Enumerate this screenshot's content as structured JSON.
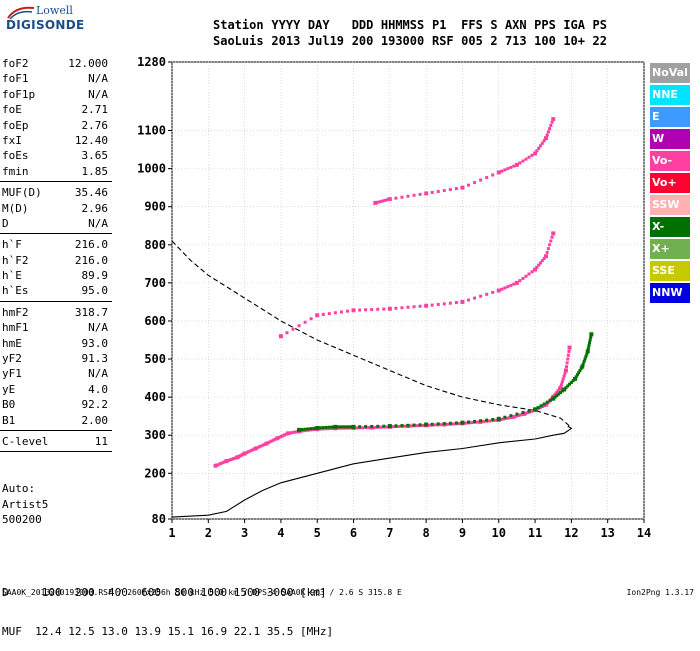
{
  "logo": {
    "line1": "Lowell",
    "line2": "DIGISONDE"
  },
  "header": {
    "row1": [
      "Station",
      "YYYY",
      "DAY",
      "DDD",
      "HHMMSS",
      "P1",
      "FFS",
      "S",
      "AXN",
      "PPS",
      "IGA",
      "PS"
    ],
    "row2": [
      "SaoLuis",
      "2013",
      "Jul19",
      "200",
      "193000",
      "RSF",
      "005",
      "2",
      "713",
      "100",
      "10+",
      "22"
    ]
  },
  "params": {
    "group1": [
      {
        "k": "foF2",
        "v": "12.000"
      },
      {
        "k": "foF1",
        "v": "N/A"
      },
      {
        "k": "foF1p",
        "v": "N/A"
      },
      {
        "k": "foE",
        "v": "2.71"
      },
      {
        "k": "foEp",
        "v": "2.76"
      },
      {
        "k": "fxI",
        "v": "12.40"
      },
      {
        "k": "foEs",
        "v": "3.65"
      },
      {
        "k": "fmin",
        "v": "1.85"
      }
    ],
    "group2": [
      {
        "k": "MUF(D)",
        "v": "35.46"
      },
      {
        "k": "M(D)",
        "v": "2.96"
      },
      {
        "k": "D",
        "v": "N/A"
      }
    ],
    "group3": [
      {
        "k": "h`F",
        "v": "216.0"
      },
      {
        "k": "h`F2",
        "v": "216.0"
      },
      {
        "k": "h`E",
        "v": "89.9"
      },
      {
        "k": "h`Es",
        "v": "95.0"
      }
    ],
    "group4": [
      {
        "k": "hmF2",
        "v": "318.7"
      },
      {
        "k": "hmF1",
        "v": "N/A"
      },
      {
        "k": "hmE",
        "v": "93.0"
      },
      {
        "k": "yF2",
        "v": "91.3"
      },
      {
        "k": "yF1",
        "v": "N/A"
      },
      {
        "k": "yE",
        "v": "4.0"
      },
      {
        "k": "B0",
        "v": "92.2"
      },
      {
        "k": "B1",
        "v": "2.00"
      }
    ],
    "group5": [
      {
        "k": "C-level",
        "v": "11"
      }
    ]
  },
  "auto": {
    "line1": "Auto:",
    "line2": "Artist5",
    "line3": "500200"
  },
  "legend": [
    {
      "label": "NoVal",
      "color": "#a0a0a0"
    },
    {
      "label": "NNE",
      "color": "#00e5ff"
    },
    {
      "label": "E",
      "color": "#3d9bff"
    },
    {
      "label": "W",
      "color": "#b000b0"
    },
    {
      "label": "Vo-",
      "color": "#ff40a0"
    },
    {
      "label": "Vo+",
      "color": "#ff0030"
    },
    {
      "label": "SSW",
      "color": "#ffb0b0"
    },
    {
      "label": "X-",
      "color": "#007000"
    },
    {
      "label": "X+",
      "color": "#70b050"
    },
    {
      "label": "SSE",
      "color": "#c8c800"
    },
    {
      "label": "NNW",
      "color": "#0000e0"
    }
  ],
  "bottom": {
    "d_row": "D     100  200  400  600  800 1000 1500 3000 [km]",
    "muf_row": "MUF  12.4 12.5 13.0 13.9 15.1 16.9 22.1 35.5 [MHz]"
  },
  "footer": {
    "text": "SAA0K_2013200193000.RSF / 260fx256h 50 kHz 5.0 km / DPS-4 SAA0K 903 / 2.6 S 315.8 E",
    "version": "Ion2Png 1.3.17"
  },
  "chart_data": {
    "type": "scatter",
    "x_ticks": [
      1,
      2,
      3,
      4,
      5,
      6,
      7,
      8,
      9,
      10,
      11,
      12,
      13,
      14
    ],
    "y_ticks": [
      80,
      200,
      300,
      400,
      500,
      600,
      700,
      800,
      900,
      1000,
      1100,
      1280
    ],
    "xlim": [
      1,
      14
    ],
    "ylim": [
      80,
      1280
    ],
    "grid": true,
    "series": [
      {
        "name": "O-trace (1st hop)",
        "color": "#ff40a0",
        "x": [
          2.2,
          2.5,
          2.8,
          3.0,
          3.3,
          3.6,
          3.9,
          4.2,
          4.5,
          5.0,
          5.5,
          6.0,
          6.5,
          7.0,
          7.5,
          8.0,
          8.5,
          9.0,
          9.5,
          10.0,
          10.4,
          10.7,
          11.0,
          11.3,
          11.5,
          11.7,
          11.85,
          11.95
        ],
        "y": [
          220,
          232,
          242,
          252,
          265,
          278,
          292,
          305,
          310,
          316,
          318,
          319,
          320,
          322,
          324,
          326,
          328,
          331,
          335,
          340,
          348,
          356,
          366,
          380,
          400,
          425,
          470,
          530
        ]
      },
      {
        "name": "X-trace (1st hop)",
        "color": "#007000",
        "x": [
          4.5,
          5.0,
          5.5,
          6.0,
          7.0,
          8.0,
          9.0,
          10.0,
          11.0,
          11.5,
          11.8,
          12.1,
          12.3,
          12.45,
          12.55
        ],
        "y": [
          314,
          319,
          322,
          322,
          324,
          328,
          333,
          343,
          368,
          396,
          420,
          448,
          480,
          520,
          565
        ]
      },
      {
        "name": "O-trace (2nd hop)",
        "color": "#ff40a0",
        "x": [
          4.0,
          5.0,
          6.0,
          7.0,
          8.0,
          9.0,
          10.0,
          10.5,
          11.0,
          11.3,
          11.5
        ],
        "y": [
          560,
          615,
          628,
          632,
          640,
          650,
          680,
          700,
          735,
          770,
          830
        ]
      },
      {
        "name": "O-trace (3rd hop)",
        "color": "#ff40a0",
        "x": [
          6.6,
          7.0,
          8.0,
          9.0,
          10.0,
          10.5,
          11.0,
          11.3,
          11.5
        ],
        "y": [
          910,
          920,
          935,
          950,
          990,
          1010,
          1040,
          1080,
          1130
        ]
      }
    ],
    "profile_lines": [
      {
        "name": "profile-solid",
        "style": "solid",
        "x": [
          1.0,
          2.0,
          2.5,
          3.0,
          3.5,
          4.0,
          5.0,
          6.0,
          7.0,
          8.0,
          9.0,
          10.0,
          11.0,
          11.5,
          11.8,
          12.0,
          11.9
        ],
        "y": [
          85,
          90,
          100,
          130,
          155,
          175,
          200,
          225,
          240,
          255,
          265,
          280,
          290,
          300,
          305,
          318,
          324
        ]
      },
      {
        "name": "profile-dashed",
        "style": "dashed",
        "x": [
          1.0,
          1.5,
          2.0,
          2.5,
          3.0,
          3.5,
          4.0,
          4.5,
          5.0,
          6.0,
          7.0,
          8.0,
          9.0,
          10.0,
          11.0,
          11.7,
          12.0
        ],
        "y": [
          810,
          760,
          720,
          690,
          660,
          630,
          600,
          575,
          550,
          510,
          470,
          430,
          400,
          380,
          365,
          345,
          320
        ]
      }
    ]
  }
}
